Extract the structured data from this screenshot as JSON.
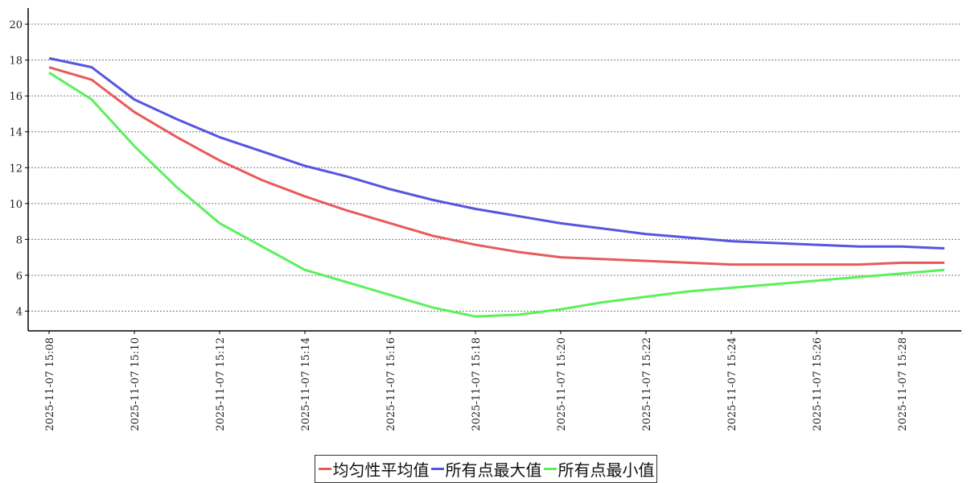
{
  "chart_data": {
    "type": "line",
    "categories": [
      "2025-11-07 15:08",
      null,
      "2025-11-07 15:10",
      null,
      "2025-11-07 15:12",
      null,
      "2025-11-07 15:14",
      null,
      "2025-11-07 15:16",
      null,
      "2025-11-07 15:18",
      null,
      "2025-11-07 15:20",
      null,
      "2025-11-07 15:22",
      null,
      "2025-11-07 15:24",
      null,
      "2025-11-07 15:26",
      null,
      "2025-11-07 15:28",
      null
    ],
    "series": [
      {
        "name": "均匀性平均值",
        "color": "#e85a5a",
        "values": [
          17.6,
          16.9,
          15.1,
          13.7,
          12.4,
          11.3,
          10.4,
          9.6,
          8.9,
          8.2,
          7.7,
          7.3,
          7.0,
          6.9,
          6.8,
          6.7,
          6.6,
          6.6,
          6.6,
          6.6,
          6.7,
          6.7
        ]
      },
      {
        "name": "所有点最大值",
        "color": "#5555e0",
        "values": [
          18.1,
          17.6,
          15.8,
          14.7,
          13.7,
          12.9,
          12.1,
          11.5,
          10.8,
          10.2,
          9.7,
          9.3,
          8.9,
          8.6,
          8.3,
          8.1,
          7.9,
          7.8,
          7.7,
          7.6,
          7.6,
          7.5
        ]
      },
      {
        "name": "所有点最小值",
        "color": "#5cf05c",
        "values": [
          17.3,
          15.8,
          13.2,
          10.9,
          8.9,
          7.6,
          6.3,
          5.6,
          4.9,
          4.2,
          3.7,
          3.8,
          4.1,
          4.5,
          4.8,
          5.1,
          5.3,
          5.5,
          5.7,
          5.9,
          6.1,
          6.3
        ]
      }
    ],
    "ylim": [
      2.9,
      20.9
    ],
    "yticks": [
      4,
      6,
      8,
      10,
      12,
      14,
      16,
      18,
      20
    ],
    "grid": true
  }
}
